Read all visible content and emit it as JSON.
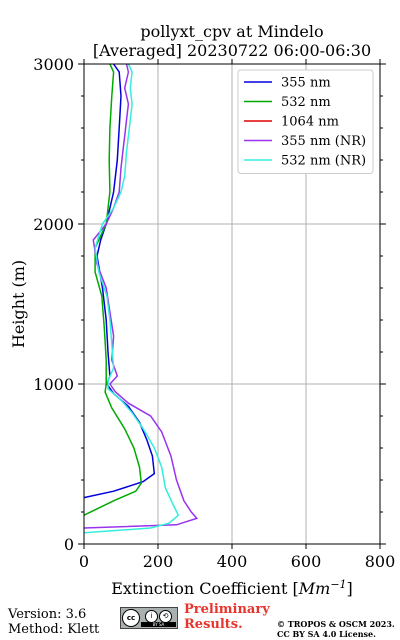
{
  "chart_data": {
    "type": "line",
    "title_line1": "pollyxt_cpv at Mindelo",
    "title_line2": "[Averaged] 20230722 06:00-06:30",
    "xlabel_text": "Extinction Coefficient [",
    "xlabel_unit": "Mm",
    "xlabel_exp": "−1",
    "xlabel_close": "]",
    "ylabel": "Height (m)",
    "xlim": [
      0,
      800
    ],
    "ylim": [
      0,
      3000
    ],
    "xticks": [
      0,
      200,
      400,
      600,
      800
    ],
    "yticks": [
      0,
      1000,
      2000,
      3000
    ],
    "grid": true,
    "legend_position": "top-right",
    "series": [
      {
        "name": "355 nm",
        "color": "#0000dd",
        "points": [
          [
            0,
            290
          ],
          [
            80,
            330
          ],
          [
            160,
            390
          ],
          [
            190,
            440
          ],
          [
            185,
            550
          ],
          [
            170,
            650
          ],
          [
            150,
            760
          ],
          [
            120,
            860
          ],
          [
            80,
            940
          ],
          [
            62,
            1000
          ],
          [
            70,
            1050
          ],
          [
            65,
            1200
          ],
          [
            60,
            1400
          ],
          [
            50,
            1600
          ],
          [
            35,
            1800
          ],
          [
            45,
            1900
          ],
          [
            60,
            2000
          ],
          [
            80,
            2200
          ],
          [
            90,
            2400
          ],
          [
            95,
            2600
          ],
          [
            100,
            2800
          ],
          [
            95,
            2950
          ],
          [
            80,
            3000
          ]
        ]
      },
      {
        "name": "532 nm",
        "color": "#00aa00",
        "points": [
          [
            0,
            180
          ],
          [
            80,
            270
          ],
          [
            140,
            330
          ],
          [
            155,
            380
          ],
          [
            150,
            480
          ],
          [
            135,
            600
          ],
          [
            110,
            720
          ],
          [
            75,
            850
          ],
          [
            57,
            950
          ],
          [
            60,
            1000
          ],
          [
            60,
            1150
          ],
          [
            55,
            1350
          ],
          [
            48,
            1550
          ],
          [
            30,
            1700
          ],
          [
            30,
            1850
          ],
          [
            60,
            2000
          ],
          [
            70,
            2200
          ],
          [
            68,
            2400
          ],
          [
            70,
            2600
          ],
          [
            75,
            2800
          ],
          [
            80,
            2950
          ],
          [
            70,
            3000
          ]
        ]
      },
      {
        "name": "1064 nm",
        "color": "#dd0000",
        "points": []
      },
      {
        "name": "355 nm (NR)",
        "color": "#9933ee",
        "points": [
          [
            0,
            100
          ],
          [
            250,
            120
          ],
          [
            305,
            160
          ],
          [
            290,
            200
          ],
          [
            270,
            270
          ],
          [
            250,
            400
          ],
          [
            235,
            550
          ],
          [
            210,
            700
          ],
          [
            180,
            800
          ],
          [
            120,
            880
          ],
          [
            85,
            950
          ],
          [
            70,
            1000
          ],
          [
            90,
            1050
          ],
          [
            75,
            1150
          ],
          [
            80,
            1300
          ],
          [
            70,
            1450
          ],
          [
            60,
            1600
          ],
          [
            35,
            1750
          ],
          [
            25,
            1900
          ],
          [
            60,
            2000
          ],
          [
            80,
            2100
          ],
          [
            95,
            2200
          ],
          [
            100,
            2350
          ],
          [
            105,
            2450
          ],
          [
            110,
            2550
          ],
          [
            115,
            2650
          ],
          [
            120,
            2750
          ],
          [
            110,
            2850
          ],
          [
            120,
            2950
          ],
          [
            115,
            3000
          ]
        ]
      },
      {
        "name": "532 nm (NR)",
        "color": "#33eedd",
        "points": [
          [
            0,
            70
          ],
          [
            180,
            100
          ],
          [
            230,
            130
          ],
          [
            255,
            180
          ],
          [
            240,
            250
          ],
          [
            220,
            350
          ],
          [
            210,
            480
          ],
          [
            190,
            600
          ],
          [
            160,
            720
          ],
          [
            130,
            820
          ],
          [
            100,
            900
          ],
          [
            65,
            970
          ],
          [
            65,
            1020
          ],
          [
            80,
            1100
          ],
          [
            75,
            1250
          ],
          [
            70,
            1400
          ],
          [
            62,
            1550
          ],
          [
            40,
            1700
          ],
          [
            30,
            1850
          ],
          [
            50,
            2000
          ],
          [
            80,
            2100
          ],
          [
            100,
            2200
          ],
          [
            110,
            2300
          ],
          [
            115,
            2450
          ],
          [
            120,
            2550
          ],
          [
            125,
            2650
          ],
          [
            130,
            2750
          ],
          [
            125,
            2850
          ],
          [
            130,
            2950
          ],
          [
            120,
            3000
          ]
        ]
      }
    ]
  },
  "footer": {
    "version": "Version: 3.6",
    "method": "Method: Klett",
    "preliminary": "Preliminary Results.",
    "copyright": "© TROPOS & OSCM 2023. CC BY SA 4.0 License.",
    "badge": {
      "cc": "cc",
      "by": "i",
      "sa": "⟲",
      "bar": "BY SA"
    }
  }
}
